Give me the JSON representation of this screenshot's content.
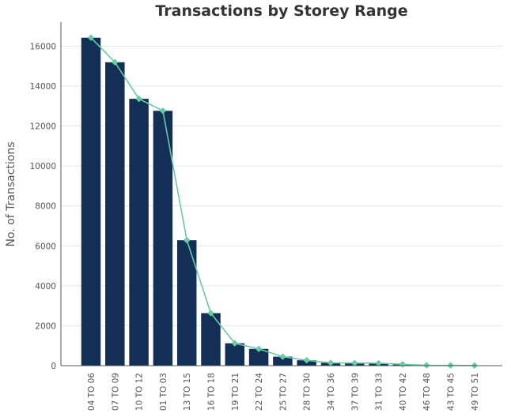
{
  "chart_data": {
    "type": "bar",
    "title": "Transactions by Storey Range",
    "xlabel": "",
    "ylabel": "No. of Transactions",
    "ylim": [
      0,
      17200
    ],
    "yticks": [
      0,
      2000,
      4000,
      6000,
      8000,
      10000,
      12000,
      14000,
      16000
    ],
    "grid": "horizontal",
    "categories": [
      "04 TO 06",
      "07 TO 09",
      "10 TO 12",
      "01 TO 03",
      "13 TO 15",
      "16 TO 18",
      "19 TO 21",
      "22 TO 24",
      "25 TO 27",
      "28 TO 30",
      "34 TO 36",
      "37 TO 39",
      "31 TO 33",
      "40 TO 42",
      "46 TO 48",
      "43 TO 45",
      "49 TO 51"
    ],
    "values": [
      16420,
      15190,
      13360,
      12760,
      6280,
      2630,
      1120,
      840,
      450,
      270,
      140,
      130,
      120,
      70,
      20,
      15,
      10
    ],
    "bar_color": "#142f56",
    "line_color": "#66cca6",
    "line_marker": "diamond"
  }
}
